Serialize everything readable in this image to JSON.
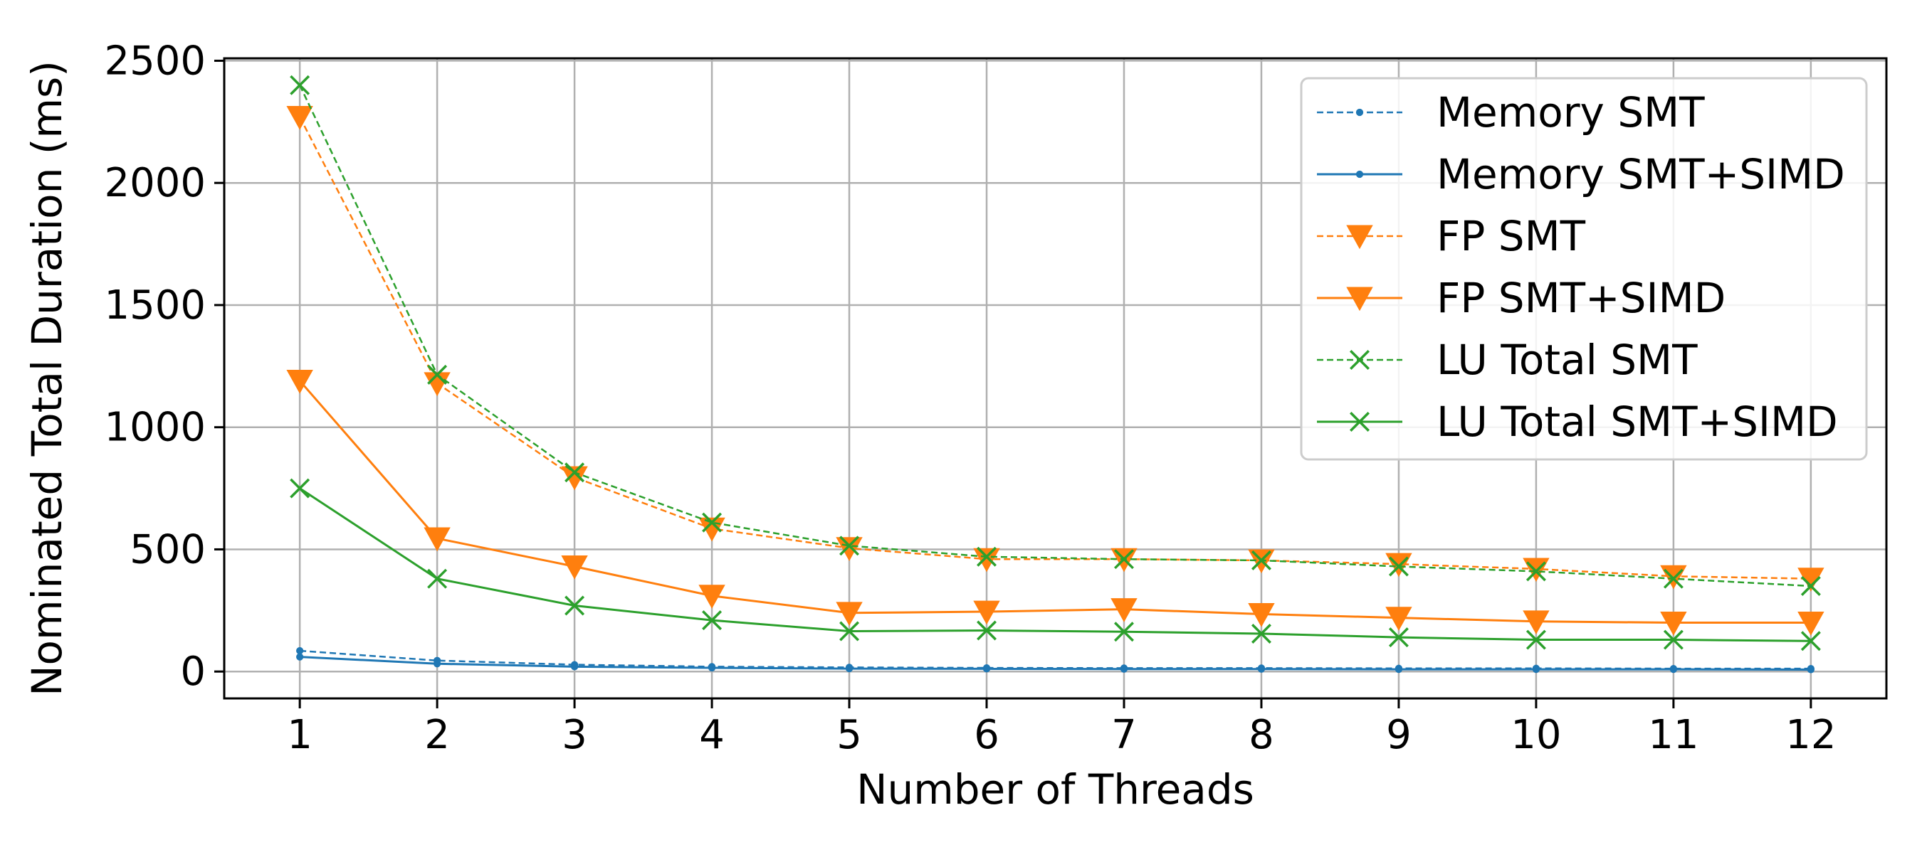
{
  "chart_data": {
    "type": "line",
    "title": "",
    "xlabel": "Number of Threads",
    "ylabel": "Nominated Total Duration (ms)",
    "x": [
      1,
      2,
      3,
      4,
      5,
      6,
      7,
      8,
      9,
      10,
      11,
      12
    ],
    "x_ticks": [
      "1",
      "2",
      "3",
      "4",
      "5",
      "6",
      "7",
      "8",
      "9",
      "10",
      "11",
      "12"
    ],
    "xlim": [
      0.45,
      12.55
    ],
    "ylim": [
      -110,
      2510
    ],
    "y_ticks": [
      0,
      500,
      1000,
      1500,
      2000,
      2500
    ],
    "grid": true,
    "legend_position": "top-right",
    "series": [
      {
        "name": "Memory SMT",
        "color": "#1f77b4",
        "linestyle": "dashed",
        "marker": "dot",
        "values": [
          85,
          45,
          28,
          20,
          17,
          15,
          14,
          14,
          13,
          13,
          12,
          12
        ]
      },
      {
        "name": "Memory SMT+SIMD",
        "color": "#1f77b4",
        "linestyle": "solid",
        "marker": "dot",
        "values": [
          60,
          32,
          20,
          15,
          12,
          11,
          10,
          10,
          9,
          9,
          9,
          8
        ]
      },
      {
        "name": "FP SMT",
        "color": "#ff7f0e",
        "linestyle": "dashed",
        "marker": "triangle-down",
        "values": [
          2270,
          1180,
          795,
          585,
          505,
          460,
          460,
          455,
          440,
          420,
          390,
          380
        ]
      },
      {
        "name": "FP SMT+SIMD",
        "color": "#ff7f0e",
        "linestyle": "solid",
        "marker": "triangle-down",
        "values": [
          1190,
          545,
          430,
          310,
          240,
          245,
          255,
          235,
          220,
          205,
          200,
          200
        ]
      },
      {
        "name": "LU Total SMT",
        "color": "#2ca02c",
        "linestyle": "dashed",
        "marker": "x",
        "values": [
          2400,
          1215,
          815,
          610,
          515,
          470,
          460,
          455,
          430,
          410,
          380,
          350
        ]
      },
      {
        "name": "LU Total SMT+SIMD",
        "color": "#2ca02c",
        "linestyle": "solid",
        "marker": "x",
        "values": [
          750,
          380,
          270,
          210,
          165,
          168,
          163,
          155,
          140,
          130,
          130,
          125
        ]
      }
    ]
  }
}
